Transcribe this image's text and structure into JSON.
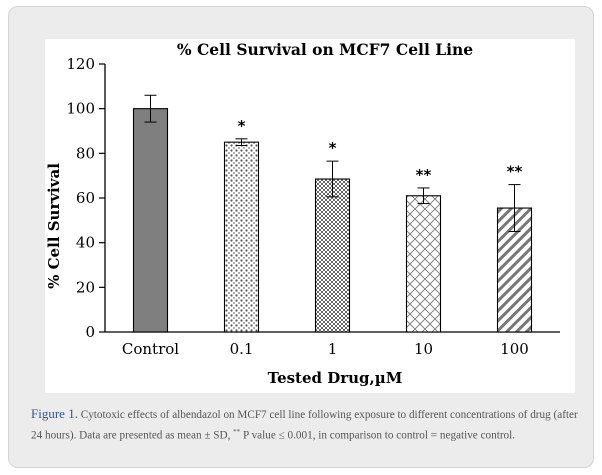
{
  "chart_data": {
    "type": "bar",
    "title": "% Cell Survival on MCF7 Cell Line",
    "xlabel": "Tested Drug,µM",
    "ylabel": "% Cell Survival",
    "categories": [
      "Control",
      "0.1",
      "1",
      "10",
      "100"
    ],
    "values": [
      100,
      85,
      68.5,
      61,
      55.5
    ],
    "errors": [
      6,
      1.5,
      8,
      3.5,
      10.5
    ],
    "significance": [
      "",
      "*",
      "*",
      "**",
      "**"
    ],
    "patterns": [
      "solid-gray",
      "dots",
      "grid",
      "diamond-lattice",
      "diagonal-stripes"
    ],
    "ylim": [
      0,
      120
    ],
    "yticks": [
      0,
      20,
      40,
      60,
      80,
      100,
      120
    ],
    "grid": false,
    "legend": "none"
  },
  "caption": {
    "label": "Figure 1.",
    "text_before": " Cytotoxic effects of albendazol on MCF7 cell line following exposure to different concentrations of drug (after 24 hours). Data are presented as mean ± SD, ",
    "sup": "**",
    "text_after": " P value ≤ 0.001, in comparison to control = negative control."
  },
  "colors": {
    "control_fill": "#7f7f7f",
    "pattern_ink": "#555555",
    "axis": "#000000",
    "caption_label": "#2f5597",
    "caption_text": "#555555"
  }
}
